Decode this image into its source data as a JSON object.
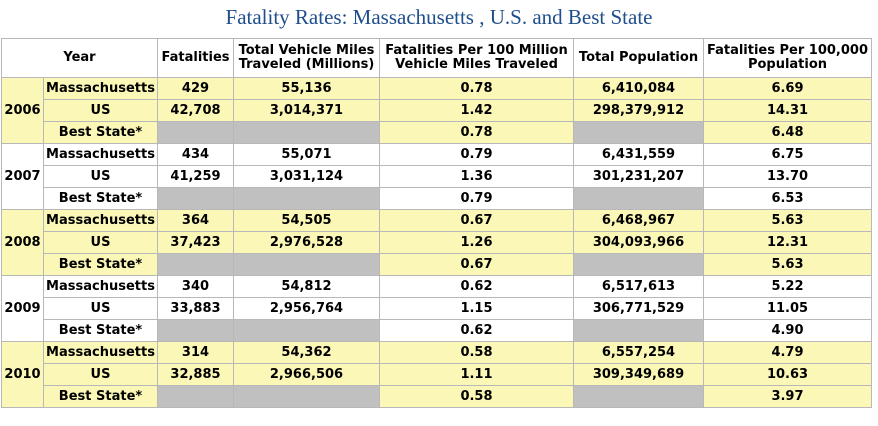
{
  "title": "Fatality Rates: Massachusetts , U.S. and Best State",
  "headers": {
    "year": "Year",
    "fatalities": "Fatalities",
    "vmt_line1": "Total Vehicle Miles",
    "vmt_line2": "Traveled (Millions)",
    "rate_vmt_line1": "Fatalities Per 100 Million",
    "rate_vmt_line2": "Vehicle Miles Traveled",
    "population": "Total Population",
    "rate_pop_line1": "Fatalities Per 100,000",
    "rate_pop_line2": "Population"
  },
  "years": [
    {
      "year": "2006",
      "rows": [
        {
          "label": "Massachusetts",
          "fatalities": "429",
          "vmt": "55,136",
          "rate_vmt": "0.78",
          "population": "6,410,084",
          "rate_pop": "6.69"
        },
        {
          "label": "US",
          "fatalities": "42,708",
          "vmt": "3,014,371",
          "rate_vmt": "1.42",
          "population": "298,379,912",
          "rate_pop": "14.31"
        },
        {
          "label": "Best State*",
          "fatalities": "",
          "vmt": "",
          "rate_vmt": "0.78",
          "population": "",
          "rate_pop": "6.48"
        }
      ]
    },
    {
      "year": "2007",
      "rows": [
        {
          "label": "Massachusetts",
          "fatalities": "434",
          "vmt": "55,071",
          "rate_vmt": "0.79",
          "population": "6,431,559",
          "rate_pop": "6.75"
        },
        {
          "label": "US",
          "fatalities": "41,259",
          "vmt": "3,031,124",
          "rate_vmt": "1.36",
          "population": "301,231,207",
          "rate_pop": "13.70"
        },
        {
          "label": "Best State*",
          "fatalities": "",
          "vmt": "",
          "rate_vmt": "0.79",
          "population": "",
          "rate_pop": "6.53"
        }
      ]
    },
    {
      "year": "2008",
      "rows": [
        {
          "label": "Massachusetts",
          "fatalities": "364",
          "vmt": "54,505",
          "rate_vmt": "0.67",
          "population": "6,468,967",
          "rate_pop": "5.63"
        },
        {
          "label": "US",
          "fatalities": "37,423",
          "vmt": "2,976,528",
          "rate_vmt": "1.26",
          "population": "304,093,966",
          "rate_pop": "12.31"
        },
        {
          "label": "Best State*",
          "fatalities": "",
          "vmt": "",
          "rate_vmt": "0.67",
          "population": "",
          "rate_pop": "5.63"
        }
      ]
    },
    {
      "year": "2009",
      "rows": [
        {
          "label": "Massachusetts",
          "fatalities": "340",
          "vmt": "54,812",
          "rate_vmt": "0.62",
          "population": "6,517,613",
          "rate_pop": "5.22"
        },
        {
          "label": "US",
          "fatalities": "33,883",
          "vmt": "2,956,764",
          "rate_vmt": "1.15",
          "population": "306,771,529",
          "rate_pop": "11.05"
        },
        {
          "label": "Best State*",
          "fatalities": "",
          "vmt": "",
          "rate_vmt": "0.62",
          "population": "",
          "rate_pop": "4.90"
        }
      ]
    },
    {
      "year": "2010",
      "rows": [
        {
          "label": "Massachusetts",
          "fatalities": "314",
          "vmt": "54,362",
          "rate_vmt": "0.58",
          "population": "6,557,254",
          "rate_pop": "4.79"
        },
        {
          "label": "US",
          "fatalities": "32,885",
          "vmt": "2,966,506",
          "rate_vmt": "1.11",
          "population": "309,349,689",
          "rate_pop": "10.63"
        },
        {
          "label": "Best State*",
          "fatalities": "",
          "vmt": "",
          "rate_vmt": "0.58",
          "population": "",
          "rate_pop": "3.97"
        }
      ]
    }
  ],
  "colors": {
    "title": "#1f4e8c",
    "highlight_row": "#fbf7b7",
    "empty_cell": "#c0c0c0",
    "border": "#b8b8b8"
  }
}
